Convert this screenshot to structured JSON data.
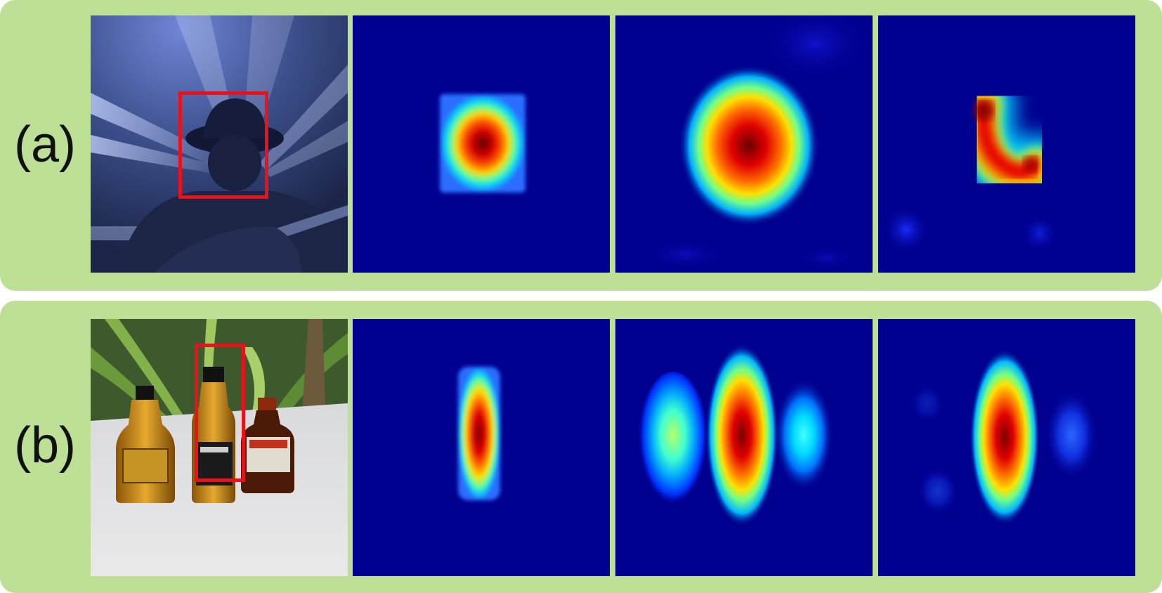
{
  "rows": [
    {
      "label": "(a)"
    },
    {
      "label": "(b)"
    }
  ],
  "colors": {
    "background": "#bde096",
    "bounding_box": "#e8121b",
    "heatmap_base": "#00008f"
  }
}
